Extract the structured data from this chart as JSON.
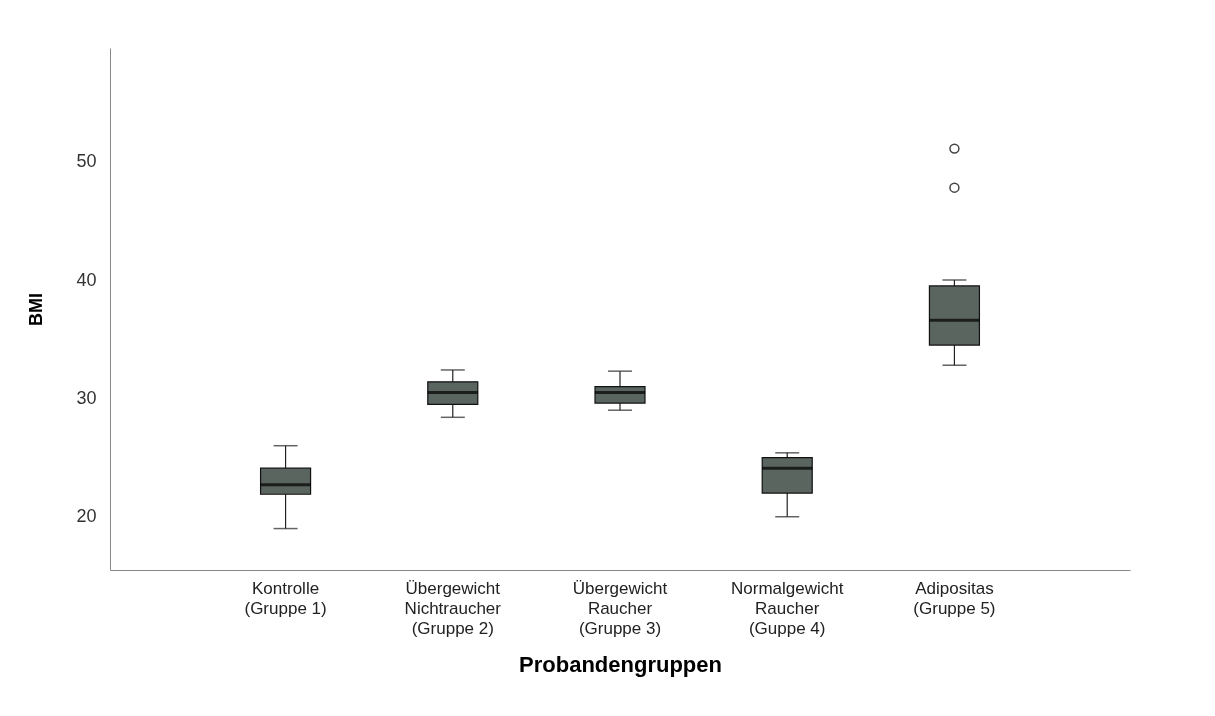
{
  "chart_data": {
    "type": "box",
    "xlabel": "Probandengruppen",
    "ylabel": "BMI",
    "color": "#5a6560",
    "categories": [
      "Kontrolle\n(Gruppe 1)",
      "Übergewicht\nNichtraucher\n(Gruppe 2)",
      "Übergewicht\nRaucher\n(Gruppe 3)",
      "Normalgewicht\nRaucher\n(Guppe 4)",
      "Adipositas\n(Gruppe 5)"
    ],
    "boxes": [
      {
        "low": 19.0,
        "q1": 21.9,
        "median": 22.7,
        "q3": 24.1,
        "high": 26.0
      },
      {
        "low": 28.4,
        "q1": 29.5,
        "median": 30.5,
        "q3": 31.4,
        "high": 32.4
      },
      {
        "low": 29.0,
        "q1": 29.6,
        "median": 30.5,
        "q3": 31.0,
        "high": 32.3
      },
      {
        "low": 20.0,
        "q1": 22.0,
        "median": 24.1,
        "q3": 25.0,
        "high": 25.4
      },
      {
        "low": 32.8,
        "q1": 34.5,
        "median": 36.6,
        "q3": 39.5,
        "high": 40.0,
        "outliers": [
          51.1,
          47.8
        ]
      }
    ],
    "ylim": [
      15.5,
      59.6
    ],
    "yticks": [
      20,
      30,
      40,
      50
    ]
  }
}
